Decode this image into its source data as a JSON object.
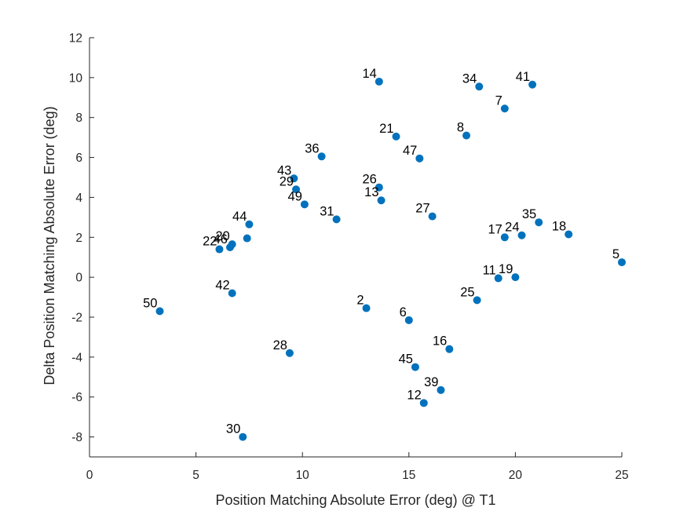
{
  "chart_data": {
    "type": "scatter",
    "xlabel": "Position Matching Absolute Error (deg) @ T1",
    "ylabel": "Delta Position Matching Absolute Error (deg)",
    "xlim": [
      0,
      25
    ],
    "ylim": [
      -9,
      12
    ],
    "xticks": [
      0,
      5,
      10,
      15,
      20,
      25
    ],
    "yticks": [
      -8,
      -6,
      -4,
      -2,
      0,
      2,
      4,
      6,
      8,
      10,
      12
    ],
    "grid": false,
    "marker_color": "#0072BD",
    "points": [
      {
        "label": "2",
        "x": 13.0,
        "y": -1.55
      },
      {
        "label": "5",
        "x": 25.0,
        "y": 0.75
      },
      {
        "label": "6",
        "x": 15.0,
        "y": -2.15
      },
      {
        "label": "7",
        "x": 19.5,
        "y": 8.45
      },
      {
        "label": "8",
        "x": 17.7,
        "y": 7.1
      },
      {
        "label": "11",
        "x": 19.2,
        "y": -0.05
      },
      {
        "label": "12",
        "x": 15.7,
        "y": -6.3
      },
      {
        "label": "13",
        "x": 13.7,
        "y": 3.85
      },
      {
        "label": "14",
        "x": 13.6,
        "y": 9.8
      },
      {
        "label": "16",
        "x": 16.9,
        "y": -3.6
      },
      {
        "label": "17",
        "x": 19.5,
        "y": 2.0
      },
      {
        "label": "18",
        "x": 22.5,
        "y": 2.15
      },
      {
        "label": "19",
        "x": 20.0,
        "y": 0.0
      },
      {
        "label": "20",
        "x": 6.7,
        "y": 1.65
      },
      {
        "label": "21",
        "x": 14.4,
        "y": 7.05
      },
      {
        "label": "22",
        "x": 6.1,
        "y": 1.4
      },
      {
        "label": "24",
        "x": 20.3,
        "y": 2.1
      },
      {
        "label": "25",
        "x": 18.2,
        "y": -1.15
      },
      {
        "label": "26",
        "x": 13.6,
        "y": 4.5
      },
      {
        "label": "27",
        "x": 16.1,
        "y": 3.05
      },
      {
        "label": "28",
        "x": 9.4,
        "y": -3.8
      },
      {
        "label": "29",
        "x": 9.7,
        "y": 4.4
      },
      {
        "label": "30",
        "x": 7.2,
        "y": -8.0
      },
      {
        "label": "31",
        "x": 11.6,
        "y": 2.9
      },
      {
        "label": "34",
        "x": 18.3,
        "y": 9.55
      },
      {
        "label": "35",
        "x": 21.1,
        "y": 2.75
      },
      {
        "label": "36",
        "x": 10.9,
        "y": 6.05
      },
      {
        "label": "39",
        "x": 16.5,
        "y": -5.65
      },
      {
        "label": "41",
        "x": 20.8,
        "y": 9.65
      },
      {
        "label": "42",
        "x": 6.7,
        "y": -0.8
      },
      {
        "label": "43",
        "x": 9.6,
        "y": 4.95
      },
      {
        "label": "44",
        "x": 7.5,
        "y": 2.65
      },
      {
        "label": "45",
        "x": 15.3,
        "y": -4.5
      },
      {
        "label": "46",
        "x": 6.6,
        "y": 1.5
      },
      {
        "label": "47",
        "x": 15.5,
        "y": 5.95
      },
      {
        "label": "49",
        "x": 10.1,
        "y": 3.65
      },
      {
        "label": "50",
        "x": 3.3,
        "y": -1.7
      },
      {
        "label": "",
        "x": 7.4,
        "y": 1.95
      }
    ]
  }
}
